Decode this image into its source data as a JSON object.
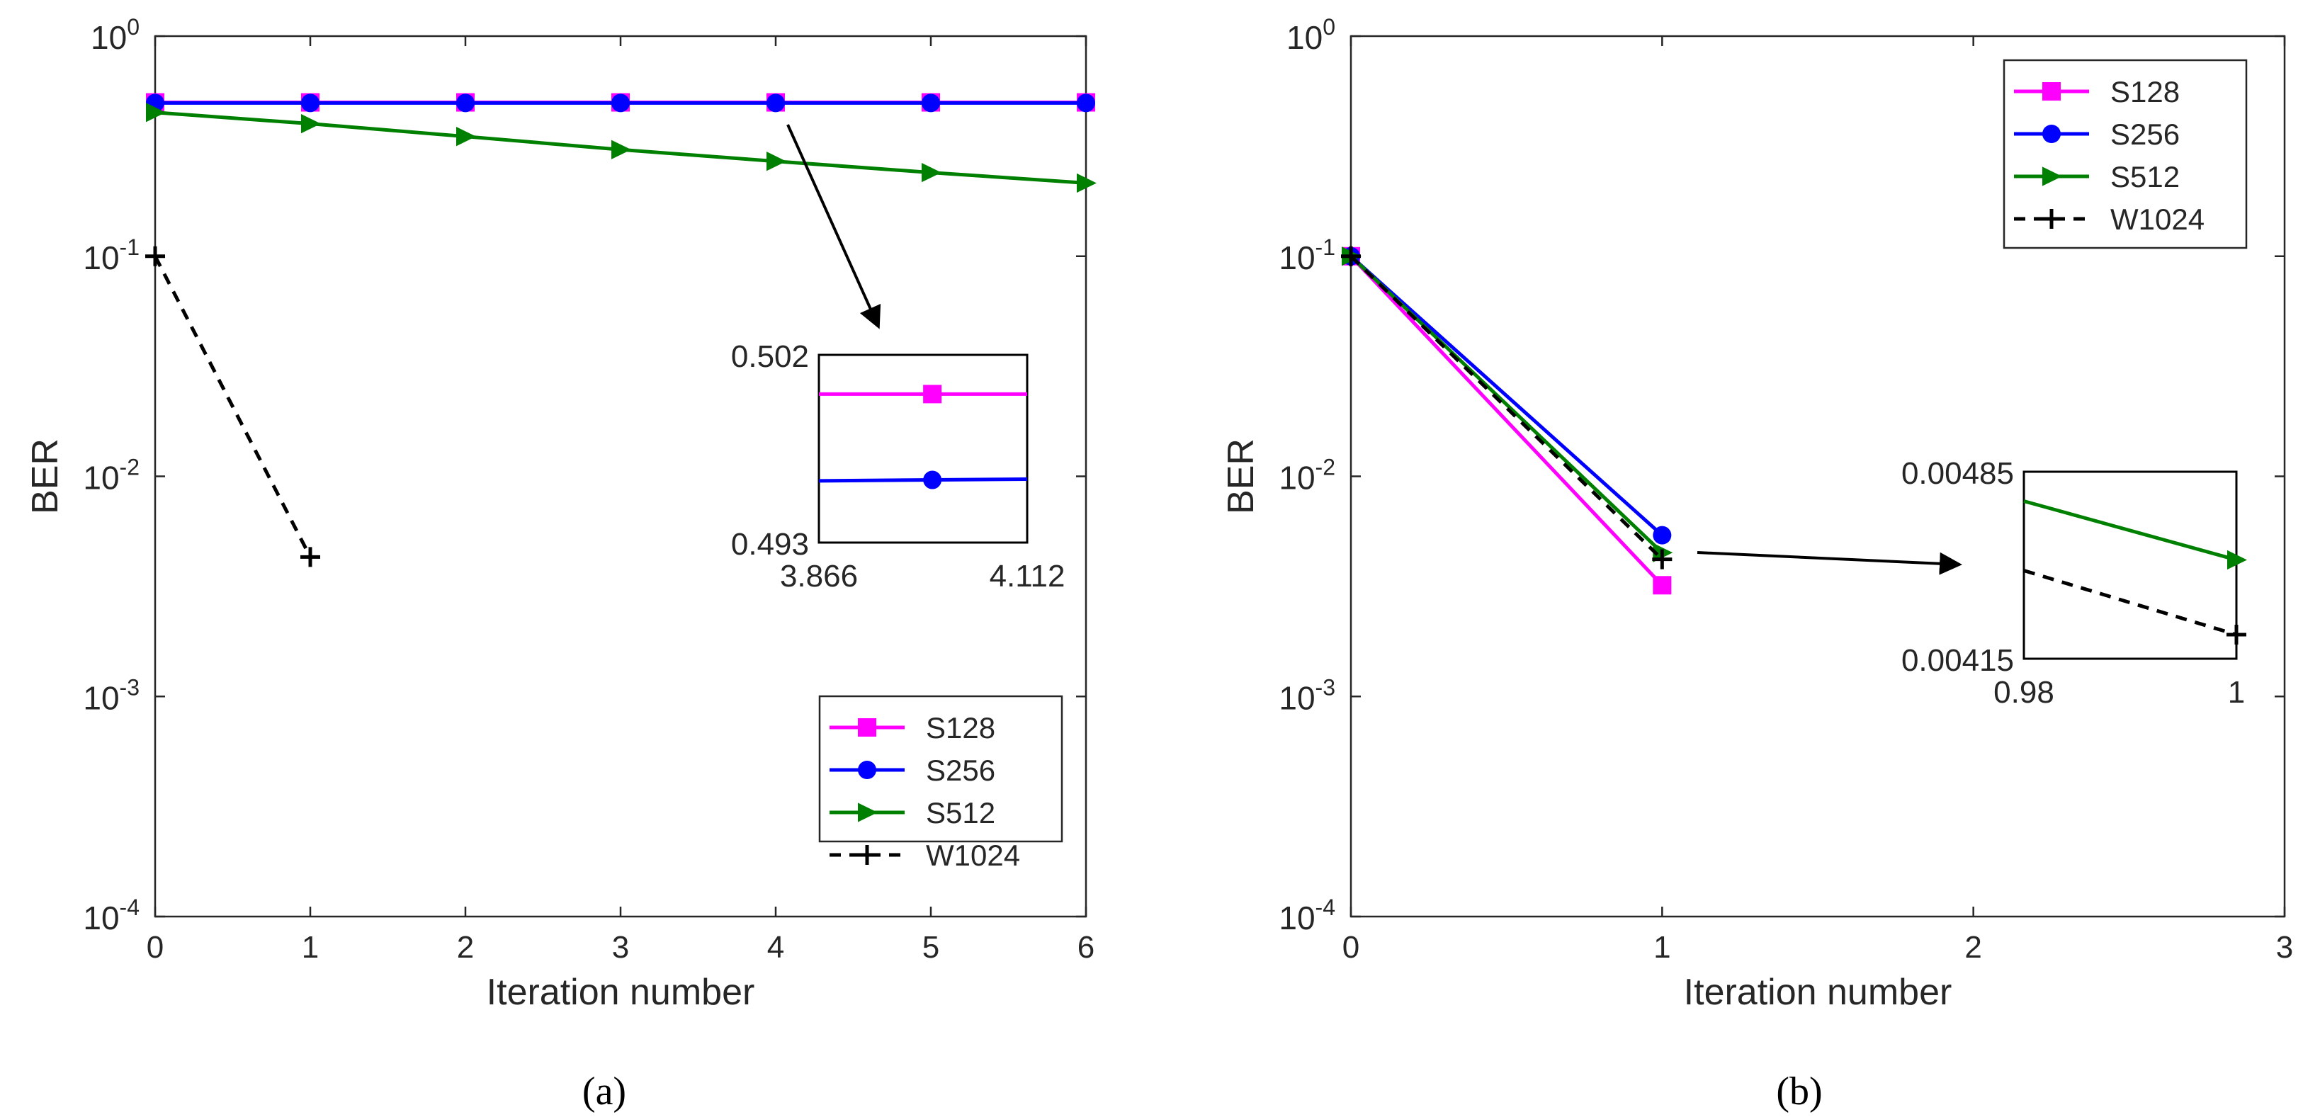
{
  "colors": {
    "s128": "#FF00FF",
    "s256": "#0000FF",
    "s512": "#008000",
    "w1024": "#000000",
    "axis": "#262626"
  },
  "chart_data": [
    {
      "id": "a",
      "type": "line",
      "caption": "(a)",
      "xlabel": "Iteration number",
      "ylabel": "BER",
      "yscale": "log",
      "xlim": [
        0,
        6
      ],
      "ylim": [
        0.0001,
        1
      ],
      "xticks": [
        "0",
        "1",
        "2",
        "3",
        "4",
        "5",
        "6"
      ],
      "yticks": [
        {
          "base": "10",
          "exp": "0"
        },
        {
          "base": "10",
          "exp": "-1"
        },
        {
          "base": "10",
          "exp": "-2"
        },
        {
          "base": "10",
          "exp": "-3"
        },
        {
          "base": "10",
          "exp": "-4"
        }
      ],
      "legend_position": "bottom-right",
      "series": [
        {
          "name": "S128",
          "color_key": "s128",
          "marker": "square",
          "dash": false,
          "x": [
            0,
            1,
            2,
            3,
            4,
            5,
            6
          ],
          "y": [
            0.5,
            0.5,
            0.5,
            0.5,
            0.5,
            0.5,
            0.5
          ]
        },
        {
          "name": "S256",
          "color_key": "s256",
          "marker": "circle",
          "dash": false,
          "x": [
            0,
            1,
            2,
            3,
            4,
            5,
            6
          ],
          "y": [
            0.497,
            0.497,
            0.497,
            0.497,
            0.497,
            0.497,
            0.497
          ]
        },
        {
          "name": "S512",
          "color_key": "s512",
          "marker": "triangle-right",
          "dash": false,
          "x": [
            0,
            1,
            2,
            3,
            4,
            5,
            6
          ],
          "y": [
            0.45,
            0.4,
            0.35,
            0.305,
            0.27,
            0.24,
            0.215
          ]
        },
        {
          "name": "W1024",
          "color_key": "w1024",
          "marker": "plus",
          "dash": true,
          "x": [
            0,
            1
          ],
          "y": [
            0.1,
            0.0043
          ]
        }
      ],
      "inset": {
        "xlim": [
          3.866,
          4.112
        ],
        "ylim": [
          0.493,
          0.502
        ],
        "xtick_labels": [
          "3.866",
          "4.112"
        ],
        "ytick_labels": [
          "0.502",
          "0.493"
        ],
        "series": [
          {
            "name": "S128",
            "color_key": "s128",
            "marker": "square",
            "x": [
              3.866,
              4.112
            ],
            "y": [
              0.50012,
              0.50012
            ],
            "marker_x": 4.0
          },
          {
            "name": "S256",
            "color_key": "s256",
            "marker": "circle",
            "x": [
              3.866,
              4.112
            ],
            "y": [
              0.49596,
              0.49604
            ],
            "marker_x": 4.0
          }
        ]
      }
    },
    {
      "id": "b",
      "type": "line",
      "caption": "(b)",
      "xlabel": "Iteration number",
      "ylabel": "BER",
      "yscale": "log",
      "xlim": [
        0,
        3
      ],
      "ylim": [
        0.0001,
        1
      ],
      "xticks": [
        "0",
        "1",
        "2",
        "3"
      ],
      "yticks": [
        {
          "base": "10",
          "exp": "0"
        },
        {
          "base": "10",
          "exp": "-1"
        },
        {
          "base": "10",
          "exp": "-2"
        },
        {
          "base": "10",
          "exp": "-3"
        },
        {
          "base": "10",
          "exp": "-4"
        }
      ],
      "legend_position": "top-right",
      "series": [
        {
          "name": "S128",
          "color_key": "s128",
          "marker": "square",
          "dash": false,
          "x": [
            0,
            1
          ],
          "y": [
            0.1,
            0.0032
          ]
        },
        {
          "name": "S256",
          "color_key": "s256",
          "marker": "circle",
          "dash": false,
          "x": [
            0,
            1
          ],
          "y": [
            0.1,
            0.0054
          ]
        },
        {
          "name": "S512",
          "color_key": "s512",
          "marker": "triangle-right",
          "dash": false,
          "x": [
            0,
            1
          ],
          "y": [
            0.1,
            0.0045
          ]
        },
        {
          "name": "W1024",
          "color_key": "w1024",
          "marker": "plus",
          "dash": true,
          "x": [
            0,
            1
          ],
          "y": [
            0.1,
            0.0042
          ]
        }
      ],
      "inset": {
        "xlim": [
          0.98,
          1
        ],
        "ylim": [
          0.00415,
          0.00485
        ],
        "xtick_labels": [
          "0.98",
          "1"
        ],
        "ytick_labels": [
          "0.00485",
          "0.00415"
        ],
        "series": [
          {
            "name": "S512",
            "color_key": "s512",
            "marker": "triangle-right",
            "x": [
              0.98,
              1
            ],
            "y": [
              0.00474,
              0.00452
            ],
            "marker_x": 1
          },
          {
            "name": "W1024",
            "color_key": "w1024",
            "marker": "plus",
            "dash": true,
            "x": [
              0.98,
              1
            ],
            "y": [
              0.00448,
              0.00424
            ],
            "marker_x": 1
          }
        ]
      }
    }
  ]
}
